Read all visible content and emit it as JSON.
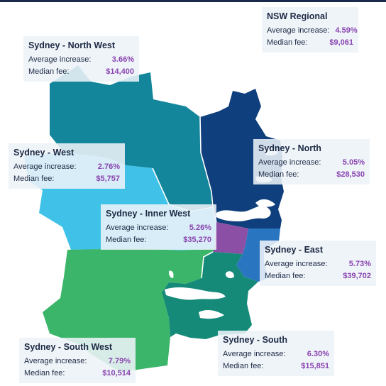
{
  "colors": {
    "sydney_north": "#0f3f7c",
    "sydney_north_west": "#14869c",
    "sydney_west": "#40c2e8",
    "sydney_inner_west": "#8c4fa6",
    "sydney_east": "#2a75c0",
    "sydney_south_west": "#3bb56a",
    "sydney_south": "#158a79",
    "value_text": "#8a44b0",
    "card_bg": "#edf3f8"
  },
  "regions": [
    {
      "key": "nsw_regional",
      "name": "NSW Regional",
      "avg_label": "Average increase:",
      "avg_value": "4.59%",
      "fee_label": "Median fee:",
      "fee_value": "$9,061"
    },
    {
      "key": "north_west",
      "name": "Sydney - North West",
      "avg_label": "Average increase:",
      "avg_value": "3.66%",
      "fee_label": "Median fee:",
      "fee_value": "$14,400"
    },
    {
      "key": "west",
      "name": "Sydney - West",
      "avg_label": "Average increase:",
      "avg_value": "2.76%",
      "fee_label": "Median fee:",
      "fee_value": "$5,757"
    },
    {
      "key": "north",
      "name": "Sydney - North",
      "avg_label": "Average increase:",
      "avg_value": "5.05%",
      "fee_label": "Median fee:",
      "fee_value": "$28,530"
    },
    {
      "key": "inner_west",
      "name": "Sydney - Inner West",
      "avg_label": "Average increase:",
      "avg_value": "5.26%",
      "fee_label": "Median fee:",
      "fee_value": "$35,270"
    },
    {
      "key": "east",
      "name": "Sydney - East",
      "avg_label": "Average increase:",
      "avg_value": "5.73%",
      "fee_label": "Median fee:",
      "fee_value": "$39,702"
    },
    {
      "key": "south",
      "name": "Sydney - South",
      "avg_label": "Average increase:",
      "avg_value": "6.30%",
      "fee_label": "Median fee:",
      "fee_value": "$15,851"
    },
    {
      "key": "south_west",
      "name": "Sydney - South West",
      "avg_label": "Average increase:",
      "avg_value": "7.79%",
      "fee_label": "Median fee:",
      "fee_value": "$10,514"
    }
  ]
}
